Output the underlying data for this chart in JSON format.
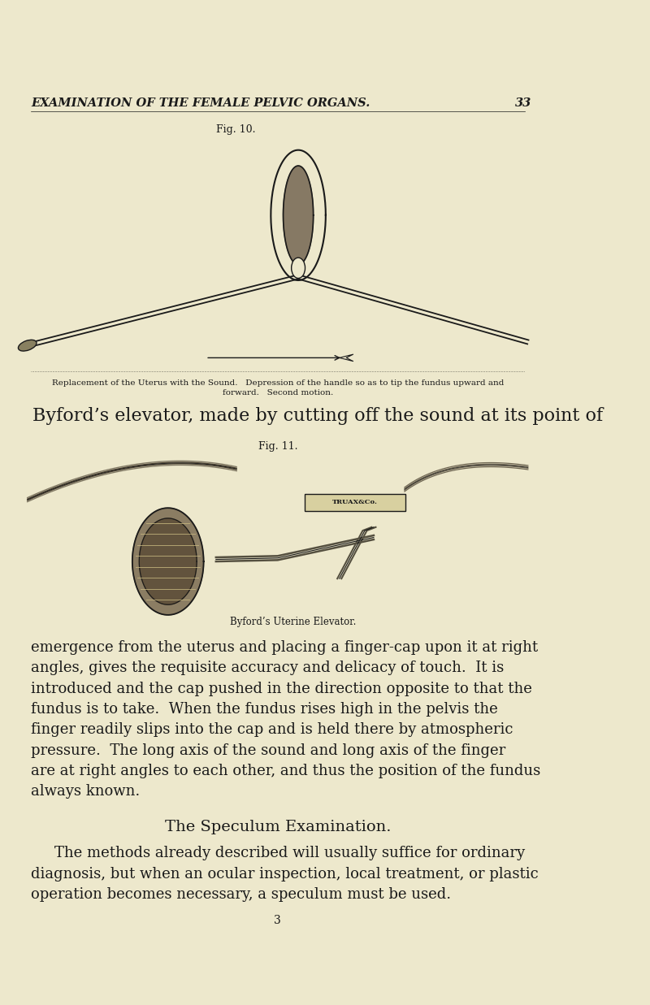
{
  "bg_color": "#ede8cc",
  "page_width": 8.0,
  "page_height": 12.37,
  "header_text": "EXAMINATION OF THE FEMALE PELVIC ORGANS.",
  "header_page_num": "33",
  "fig10_label": "Fig. 10.",
  "fig10_caption_line1": "Replacement of the Uterus with the Sound.   Depression of the handle so as to tip the fundus upward and",
  "fig10_caption_line2": "forward.   Second motion.",
  "byford_intro": "Byford’s elevator, made by cutting off the sound at its point of",
  "fig11_label": "Fig. 11.",
  "fig11_caption": "Byford’s Uterine Elevator.",
  "body_paragraphs": [
    "emergence from the uterus and placing a finger-cap upon it at right",
    "angles, gives the requisite accuracy and delicacy of touch.  It is",
    "introduced and the cap pushed in the direction opposite to that the",
    "fundus is to take.  When the fundus rises high in the pelvis the",
    "finger readily slips into the cap and is held there by atmospheric",
    "pressure.  The long axis of the sound and long axis of the finger",
    "are at right angles to each other, and thus the position of the fundus",
    "always known."
  ],
  "section_title": "The Speculum Examination.",
  "section_para": [
    "The methods already described will usually suffice for ordinary",
    "diagnosis, but when an ocular inspection, local treatment, or plastic",
    "operation becomes necessary, a speculum must be used."
  ],
  "page_number_bottom": "3",
  "text_color": "#1a1a1a",
  "line_color": "#1a1a1a"
}
